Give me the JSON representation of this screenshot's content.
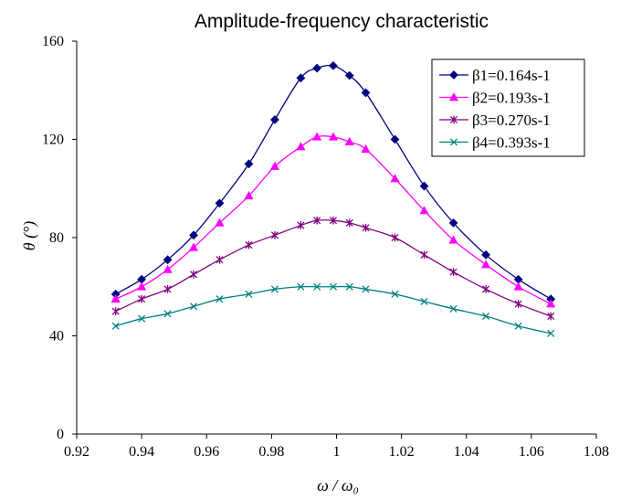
{
  "chart_data": {
    "type": "line",
    "title": "Amplitude-frequency characteristic",
    "xlabel": "ω / ω₀",
    "ylabel": "θ (°)",
    "xlim": [
      0.92,
      1.08
    ],
    "ylim": [
      0,
      160
    ],
    "xticks": [
      "0.92",
      "0.94",
      "0.96",
      "0.98",
      "1",
      "1.02",
      "1.04",
      "1.06",
      "1.08"
    ],
    "yticks": [
      "0",
      "40",
      "80",
      "120",
      "160"
    ],
    "grid": false,
    "legend_position": "top-right",
    "series": [
      {
        "name": "β1=0.164s-1",
        "color": "#000080",
        "marker": "diamond",
        "x": [
          0.932,
          0.94,
          0.948,
          0.956,
          0.964,
          0.973,
          0.981,
          0.989,
          0.994,
          0.999,
          1.004,
          1.009,
          1.018,
          1.027,
          1.036,
          1.046,
          1.056,
          1.066
        ],
        "y": [
          57,
          63,
          71,
          81,
          94,
          110,
          128,
          145,
          149,
          150,
          146,
          139,
          120,
          101,
          86,
          73,
          63,
          55
        ]
      },
      {
        "name": "β2=0.193s-1",
        "color": "#ff00ff",
        "marker": "triangle",
        "x": [
          0.932,
          0.94,
          0.948,
          0.956,
          0.964,
          0.973,
          0.981,
          0.989,
          0.994,
          0.999,
          1.004,
          1.009,
          1.018,
          1.027,
          1.036,
          1.046,
          1.056,
          1.066
        ],
        "y": [
          55,
          60,
          67,
          76,
          86,
          97,
          109,
          117,
          121,
          121,
          119,
          116,
          104,
          91,
          79,
          69,
          60,
          53
        ]
      },
      {
        "name": "β3=0.270s-1",
        "color": "#800080",
        "marker": "star",
        "x": [
          0.932,
          0.94,
          0.948,
          0.956,
          0.964,
          0.973,
          0.981,
          0.989,
          0.994,
          0.999,
          1.004,
          1.009,
          1.018,
          1.027,
          1.036,
          1.046,
          1.056,
          1.066
        ],
        "y": [
          50,
          55,
          59,
          65,
          71,
          77,
          81,
          85,
          87,
          87,
          86,
          84,
          80,
          73,
          66,
          59,
          53,
          48
        ]
      },
      {
        "name": "β4=0.393s-1",
        "color": "#008080",
        "marker": "x",
        "x": [
          0.932,
          0.94,
          0.948,
          0.956,
          0.964,
          0.973,
          0.981,
          0.989,
          0.994,
          0.999,
          1.004,
          1.009,
          1.018,
          1.027,
          1.036,
          1.046,
          1.056,
          1.066
        ],
        "y": [
          44,
          47,
          49,
          52,
          55,
          57,
          59,
          60,
          60,
          60,
          60,
          59,
          57,
          54,
          51,
          48,
          44,
          41
        ]
      }
    ]
  }
}
